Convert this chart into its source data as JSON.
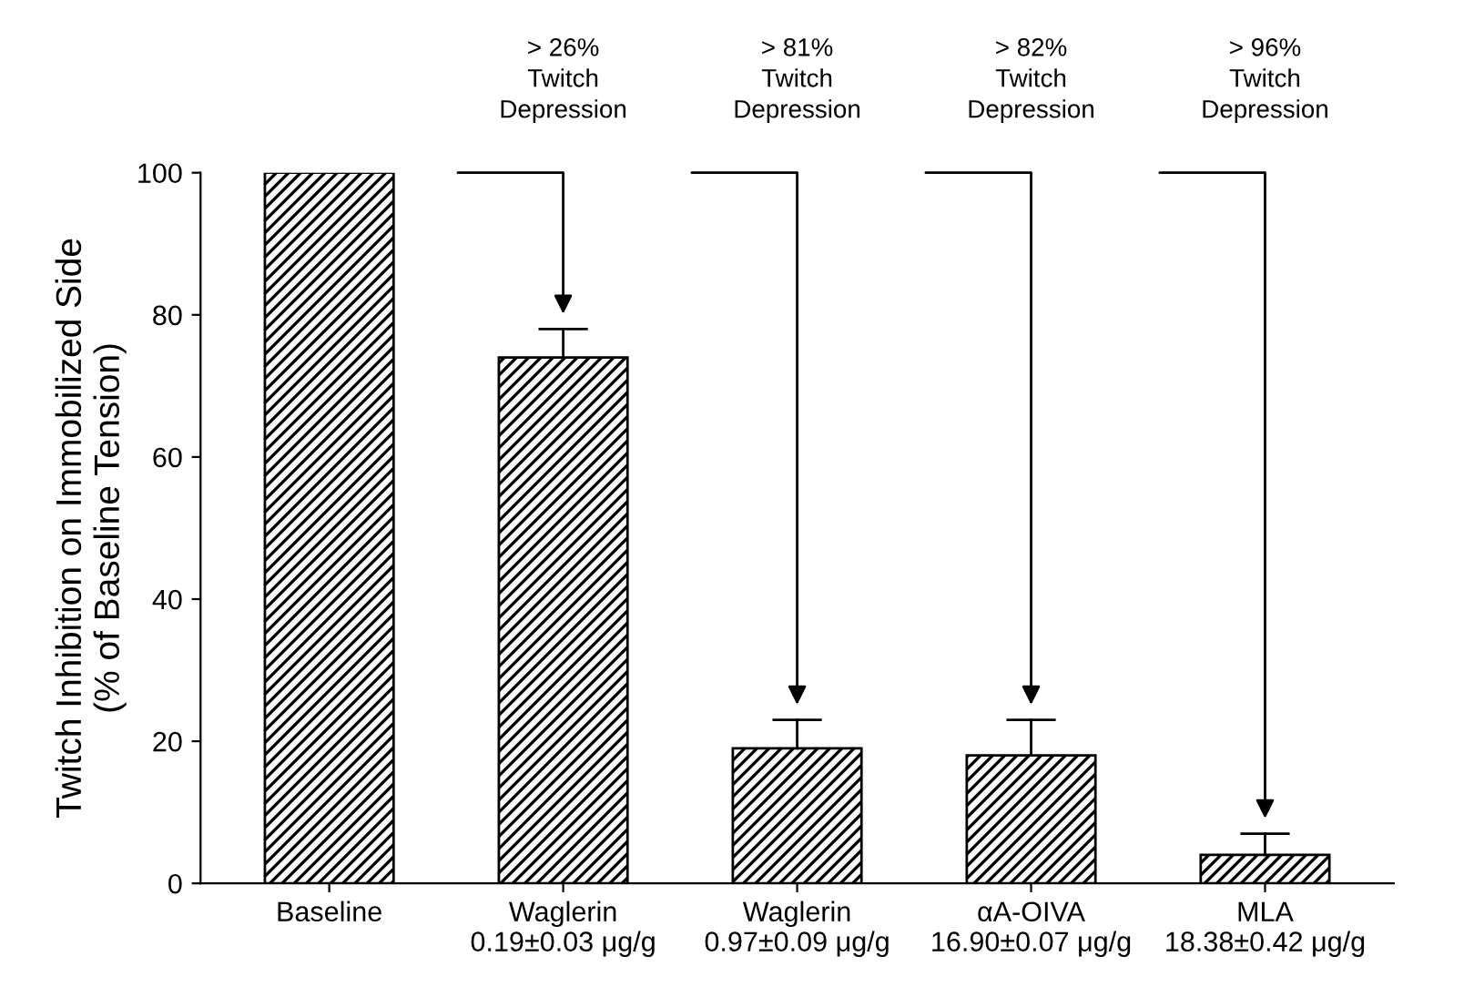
{
  "chart_data": {
    "type": "bar",
    "ylabel": "Twitch Inhibition on Immobilized Side\n(% of Baseline Tension)",
    "categories": [
      "Baseline",
      "Waglerin\n0.19±0.03 μg/g",
      "Waglerin\n0.97±0.09 μg/g",
      "αA-OIVA\n16.90±0.07 μg/g",
      "MLA\n18.38±0.42 μg/g"
    ],
    "values": [
      100,
      74,
      19,
      18,
      4
    ],
    "errors": [
      null,
      [
        74,
        78
      ],
      [
        19,
        23
      ],
      [
        18,
        23
      ],
      [
        4,
        7
      ]
    ],
    "color": "#000000",
    "ylim": [
      0,
      100
    ],
    "yticks": [
      0,
      20,
      40,
      60,
      80,
      100
    ],
    "grid": false,
    "annotations": [
      "> 26%\nTwitch\nDepression",
      "> 81%\nTwitch\nDepression",
      "> 82%\nTwitch\nDepression",
      "> 96%\nTwitch\nDepression"
    ]
  }
}
